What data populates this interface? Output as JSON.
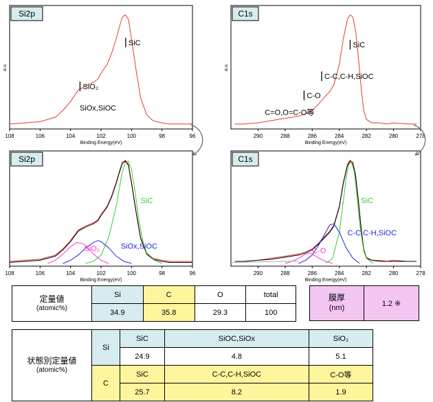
{
  "chart_data": [
    {
      "type": "line",
      "tag": "Si2p",
      "xlabel": "Binding Energy(eV)",
      "ylabel": "a.u.",
      "xlim": [
        108,
        96
      ],
      "ylim": [
        0,
        1
      ],
      "xticks": [
        108,
        106,
        104,
        102,
        100,
        98,
        96
      ],
      "series": [
        {
          "color": "#e53935",
          "x": [
            108,
            107,
            106,
            105,
            104.5,
            104,
            103.5,
            103,
            102.5,
            102.2,
            102,
            101.6,
            101.3,
            101,
            100.8,
            100.6,
            100.4,
            100.2,
            100,
            99.7,
            99.4,
            99,
            98.6,
            98,
            97.5,
            97,
            96.5,
            96
          ],
          "values": [
            0.02,
            0.03,
            0.04,
            0.08,
            0.14,
            0.22,
            0.32,
            0.36,
            0.39,
            0.42,
            0.47,
            0.55,
            0.65,
            0.78,
            0.88,
            0.97,
            0.99,
            0.95,
            0.78,
            0.5,
            0.25,
            0.1,
            0.05,
            0.03,
            0.02,
            0.02,
            0.02,
            0.02
          ]
        }
      ],
      "annotations": [
        {
          "text": "SiC",
          "x": 100.2,
          "y": 0.72,
          "marker": true
        },
        {
          "text": "SiO₂",
          "x": 103.2,
          "y": 0.33,
          "marker": true
        },
        {
          "text": "SiOx,SiOC",
          "x": 103.4,
          "y": 0.14,
          "marker": false
        }
      ]
    },
    {
      "type": "line",
      "tag": "C1s",
      "xlabel": "Binding Energy(eV)",
      "ylabel": "a.u.",
      "xlim": [
        292,
        278
      ],
      "ylim": [
        0,
        1
      ],
      "xticks": [
        290,
        288,
        286,
        284,
        282,
        280,
        278
      ],
      "series": [
        {
          "color": "#e53935",
          "x": [
            291.7,
            291,
            290,
            289,
            288,
            287,
            286.5,
            286,
            285.5,
            285,
            284.7,
            284.4,
            284,
            283.7,
            283.4,
            283.2,
            283,
            282.8,
            282.6,
            282.4,
            282.2,
            282,
            281.6,
            281,
            280.5,
            280,
            279,
            278.3
          ],
          "values": [
            0.02,
            0.02,
            0.03,
            0.05,
            0.07,
            0.09,
            0.11,
            0.14,
            0.2,
            0.27,
            0.31,
            0.37,
            0.55,
            0.78,
            0.95,
            0.99,
            0.97,
            0.85,
            0.62,
            0.35,
            0.14,
            0.06,
            0.03,
            0.03,
            0.02,
            0.03,
            0.02,
            0.02
          ]
        }
      ],
      "annotations": [
        {
          "text": "SiC",
          "x": 283.0,
          "y": 0.7,
          "marker": true
        },
        {
          "text": "C-C,C-H,SiOC",
          "x": 285.1,
          "y": 0.42,
          "marker": true
        },
        {
          "text": "C-O",
          "x": 286.4,
          "y": 0.25,
          "marker": true
        },
        {
          "text": "C=O,O=C-O等",
          "x": 289.5,
          "y": 0.1,
          "marker": false
        }
      ]
    },
    {
      "type": "line",
      "tag": "Si2p",
      "xlabel": "Binding Energy(eV)",
      "xlim": [
        108,
        96
      ],
      "ylim": [
        0,
        1
      ],
      "xticks": [
        108,
        106,
        104,
        102,
        100,
        98,
        96
      ],
      "series": [
        {
          "color": "#e53935",
          "x": [
            108,
            107,
            106,
            105,
            104.5,
            104,
            103.5,
            103,
            102.5,
            102.2,
            102,
            101.6,
            101.3,
            101,
            100.8,
            100.6,
            100.4,
            100.2,
            100,
            99.7,
            99.4,
            99,
            98.6,
            98,
            97.5,
            97,
            96.5,
            96
          ],
          "values": [
            0.02,
            0.03,
            0.04,
            0.08,
            0.14,
            0.22,
            0.32,
            0.36,
            0.39,
            0.42,
            0.47,
            0.55,
            0.65,
            0.78,
            0.88,
            0.97,
            0.99,
            0.95,
            0.78,
            0.5,
            0.25,
            0.1,
            0.05,
            0.03,
            0.02,
            0.02,
            0.02,
            0.02
          ]
        },
        {
          "color": "#000000",
          "x": [
            108,
            107,
            106,
            105,
            104.5,
            104,
            103.5,
            103,
            102.5,
            102.2,
            102,
            101.6,
            101.3,
            101,
            100.8,
            100.6,
            100.4,
            100.2,
            100,
            99.7,
            99.4,
            99,
            98.6,
            98,
            97.5,
            97,
            96.5,
            96
          ],
          "values": [
            0.01,
            0.02,
            0.03,
            0.07,
            0.13,
            0.21,
            0.31,
            0.35,
            0.38,
            0.41,
            0.46,
            0.54,
            0.64,
            0.77,
            0.87,
            0.96,
            0.98,
            0.94,
            0.77,
            0.49,
            0.24,
            0.09,
            0.04,
            0.02,
            0.01,
            0.01,
            0.01,
            0.01
          ]
        },
        {
          "color": "#33cc33",
          "x": [
            103,
            102.5,
            102,
            101.5,
            101,
            100.8,
            100.6,
            100.4,
            100.2,
            100,
            99.8,
            99.5,
            99.2,
            99,
            98.5,
            98
          ],
          "values": [
            0.0,
            0.02,
            0.08,
            0.25,
            0.55,
            0.72,
            0.88,
            0.97,
            0.98,
            0.9,
            0.72,
            0.4,
            0.18,
            0.1,
            0.03,
            0.0
          ]
        },
        {
          "color": "#2222dd",
          "x": [
            104.5,
            104,
            103.5,
            103,
            102.5,
            102.2,
            102,
            101.5,
            101,
            100.5,
            100
          ],
          "values": [
            0.0,
            0.03,
            0.08,
            0.15,
            0.2,
            0.22,
            0.21,
            0.15,
            0.07,
            0.02,
            0.0
          ]
        },
        {
          "color": "#ff33cc",
          "x": [
            105.5,
            105,
            104.5,
            104,
            103.6,
            103.2,
            103,
            102.5,
            102,
            101.5
          ],
          "values": [
            0.0,
            0.03,
            0.09,
            0.16,
            0.2,
            0.19,
            0.17,
            0.09,
            0.03,
            0.0
          ]
        }
      ],
      "annotations": [
        {
          "text": "SiC",
          "x": 99.4,
          "y": 0.58,
          "color": "#33cc33"
        },
        {
          "text": "SiOx,SiOC",
          "x": 100.7,
          "y": 0.14,
          "color": "#2222dd"
        },
        {
          "text": "SiO₂",
          "x": 103.1,
          "y": 0.12,
          "color": "#ff33cc"
        }
      ]
    },
    {
      "type": "line",
      "tag": "C1s",
      "xlabel": "Binding Energy(eV)",
      "xlim": [
        292,
        278
      ],
      "ylim": [
        0,
        1
      ],
      "xticks": [
        290,
        288,
        286,
        284,
        282,
        280,
        278
      ],
      "series": [
        {
          "color": "#e53935",
          "x": [
            291.7,
            291,
            290,
            289,
            288,
            287,
            286.5,
            286,
            285.5,
            285,
            284.7,
            284.4,
            284,
            283.7,
            283.4,
            283.2,
            283,
            282.8,
            282.6,
            282.4,
            282.2,
            282,
            281.6,
            281,
            280.5,
            280,
            279,
            278.3
          ],
          "values": [
            0.02,
            0.02,
            0.03,
            0.05,
            0.07,
            0.09,
            0.11,
            0.14,
            0.2,
            0.27,
            0.31,
            0.37,
            0.55,
            0.78,
            0.95,
            0.99,
            0.97,
            0.85,
            0.62,
            0.35,
            0.14,
            0.06,
            0.03,
            0.03,
            0.02,
            0.03,
            0.02,
            0.02
          ]
        },
        {
          "color": "#000000",
          "x": [
            291.7,
            291,
            290,
            289,
            288,
            287,
            286.5,
            286,
            285.5,
            285,
            284.7,
            284.4,
            284,
            283.7,
            283.4,
            283.2,
            283,
            282.8,
            282.6,
            282.4,
            282.2,
            282,
            281.6,
            281,
            280.5,
            280,
            279,
            278.3
          ],
          "values": [
            0.02,
            0.02,
            0.03,
            0.04,
            0.06,
            0.08,
            0.1,
            0.13,
            0.19,
            0.26,
            0.3,
            0.36,
            0.54,
            0.77,
            0.94,
            0.98,
            0.96,
            0.84,
            0.61,
            0.34,
            0.13,
            0.05,
            0.03,
            0.02,
            0.02,
            0.02,
            0.02,
            0.02
          ]
        },
        {
          "color": "#33cc33",
          "x": [
            285,
            284.5,
            284,
            283.7,
            283.5,
            283.3,
            283.1,
            282.9,
            282.7,
            282.5,
            282.2,
            282,
            281.5
          ],
          "values": [
            0.0,
            0.05,
            0.3,
            0.6,
            0.82,
            0.95,
            0.97,
            0.88,
            0.65,
            0.38,
            0.12,
            0.05,
            0.0
          ]
        },
        {
          "color": "#2222dd",
          "x": [
            287,
            286.5,
            286,
            285.5,
            285,
            284.7,
            284.4,
            284,
            283.5,
            283,
            282.5
          ],
          "values": [
            0.0,
            0.03,
            0.08,
            0.18,
            0.3,
            0.37,
            0.38,
            0.3,
            0.15,
            0.05,
            0.0
          ]
        },
        {
          "color": "#ff33cc",
          "x": [
            288,
            287.5,
            287,
            286.5,
            286.2,
            286,
            285.5,
            285,
            284.5
          ],
          "values": [
            0.0,
            0.02,
            0.05,
            0.09,
            0.1,
            0.09,
            0.05,
            0.02,
            0.0
          ]
        },
        {
          "color": "#aaaaaa",
          "x": [
            292,
            291,
            290,
            289,
            288,
            287
          ],
          "values": [
            0.01,
            0.012,
            0.015,
            0.018,
            0.02,
            0.022
          ]
        }
      ],
      "annotations": [
        {
          "text": "SiC",
          "x": 282.4,
          "y": 0.58,
          "color": "#33cc33"
        },
        {
          "text": "C-C,C-H,SiOC",
          "x": 283.4,
          "y": 0.27,
          "color": "#2222dd"
        },
        {
          "text": "C-O",
          "x": 286.0,
          "y": 0.1,
          "color": "#ff33cc"
        }
      ]
    }
  ],
  "quant_table": {
    "label": "定量値",
    "unit": "(atomic%)",
    "headers": [
      "Si",
      "C",
      "O",
      "total"
    ],
    "values": [
      "34.9",
      "35.8",
      "29.3",
      "100"
    ]
  },
  "thickness": {
    "label": "膜厚",
    "unit": "(nm)",
    "value": "1.2 ※"
  },
  "state_table": {
    "label": "状態別定量値",
    "unit": "(atomic%)",
    "si_label": "Si",
    "si_headers": [
      "SiC",
      "SiOC,SiOx",
      "SiO₂"
    ],
    "si_values": [
      "24.9",
      "4.8",
      "5.1"
    ],
    "c_label": "C",
    "c_headers": [
      "SiC",
      "C-C,C-H,SiOC",
      "C-O等"
    ],
    "c_values": [
      "25.7",
      "8.2",
      "1.9"
    ]
  }
}
